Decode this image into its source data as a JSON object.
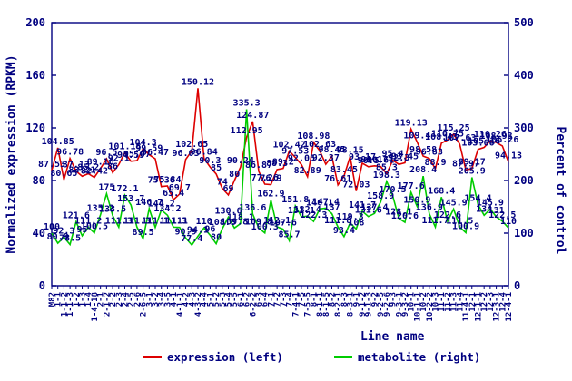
{
  "chart_data": {
    "type": "line",
    "title": "",
    "xlabel": "Line name",
    "ylabel_left": "Normalized expression (RPKM)",
    "ylabel_right": "Percent of control",
    "ylim_left": [
      0,
      200
    ],
    "yticks_left": [
      0,
      40,
      80,
      120,
      160,
      200
    ],
    "ylim_right": [
      0,
      500
    ],
    "yticks_right": [
      0,
      100,
      200,
      300,
      400,
      500
    ],
    "grid": false,
    "legend_position": "bottom",
    "axis_color": "#000080",
    "label_color": "#000080",
    "categories": [
      "M82",
      "1-1",
      "1-1-2",
      "1-1-3",
      "1-2",
      "1-3",
      "1-4",
      "1-4-18",
      "2-1",
      "2-1-2",
      "2-2",
      "2-3",
      "2-4",
      "2-5",
      "2-6",
      "2-6-5",
      "3-1",
      "3-2",
      "3-4",
      "3-5",
      "4-1",
      "4-1-1",
      "4-2",
      "4-3",
      "4-3-2",
      "4-4",
      "5-1",
      "5-2",
      "5-3",
      "5-4",
      "5-5",
      "6-1",
      "6-2",
      "6-2-2",
      "6-3",
      "6-4",
      "7-1",
      "7-2",
      "7-3",
      "7-4",
      "7-4-1",
      "7-5",
      "7-5-5",
      "8-1",
      "8-1-1",
      "8-1-5",
      "8-2",
      "8-2-1",
      "8-3",
      "8-3-1",
      "9-1",
      "9-1-2",
      "9-1-3",
      "9-2",
      "9-2-5",
      "9-2-6",
      "9-3",
      "9-3-1",
      "9-3-2",
      "10-1",
      "10-1-1",
      "10-2",
      "10-2-2",
      "10-3",
      "11-1",
      "11-2",
      "11-3",
      "11-4",
      "11-4-1",
      "12-1",
      "12-1-1",
      "12-2",
      "12-3",
      "12-3-1",
      "12-4",
      "12-4-1"
    ],
    "series": [
      {
        "name": "expression (left)",
        "axis": "left",
        "color": "#dd0000",
        "values": [
          87.53,
          104.85,
          80.65,
          96.78,
          87.13,
          83.21,
          85.2,
          82.42,
          89.16,
          96.5,
          86.0,
          92.1,
          101.18,
          94.59,
          95.07,
          104.3,
          99.59,
          96.47,
          75.36,
          75.84,
          65.4,
          69.7,
          96.03,
          102.65,
          150.12,
          96.84,
          90.3,
          85.0,
          74.0,
          69.0,
          80.0,
          90.24,
          112.95,
          124.87,
          86.87,
          77.26,
          76.9,
          88.3,
          89.2,
          102.42,
          97.53,
          92.05,
          82.89,
          108.98,
          102.63,
          92.37,
          98.45,
          76.61,
          83.45,
          98.15,
          72.03,
          93.17,
          90.5,
          91.17,
          90.61,
          85.3,
          95.4,
          92.3,
          93.45,
          119.13,
          109.4,
          98.58,
          96.83,
          88.9,
          108.43,
          110.75,
          115.25,
          107.63,
          87.97,
          89.17,
          103.66,
          105.16,
          110.26,
          108.93,
          106.26,
          94.13
        ]
      },
      {
        "name": "metabolite (right)",
        "axis": "right",
        "color": "#00cc00",
        "values": [
          100,
          80.9,
          92.3,
          78.5,
          121.6,
          95.0,
          111.2,
          100.5,
          135.2,
          175.0,
          133.5,
          111.3,
          172.1,
          153.7,
          111.3,
          89.5,
          146.7,
          111.1,
          144.2,
          134.2,
          111.3,
          111.0,
          90.9,
          77.4,
          94.1,
          110.0,
          96.0,
          80.0,
          108.3,
          130.6,
          109.8,
          118.1,
          335.3,
          136.6,
          109.8,
          100.3,
          162.9,
          112.1,
          107.6,
          85.7,
          151.8,
          131.1,
          132.4,
          122.3,
          146.1,
          147.4,
          137.0,
          111.8,
          93.4,
          119.3,
          108.0,
          141.7,
          131.6,
          137.4,
          158.9,
          198.3,
          170.5,
          128.1,
          120.6,
          177.6,
          150.9,
          208.4,
          136.9,
          111.7,
          168.4,
          122.6,
          145.9,
          111.5,
          100.9,
          205.9,
          154.4,
          134.0,
          145.9,
          131.0,
          122.5,
          110.0
        ]
      }
    ]
  }
}
